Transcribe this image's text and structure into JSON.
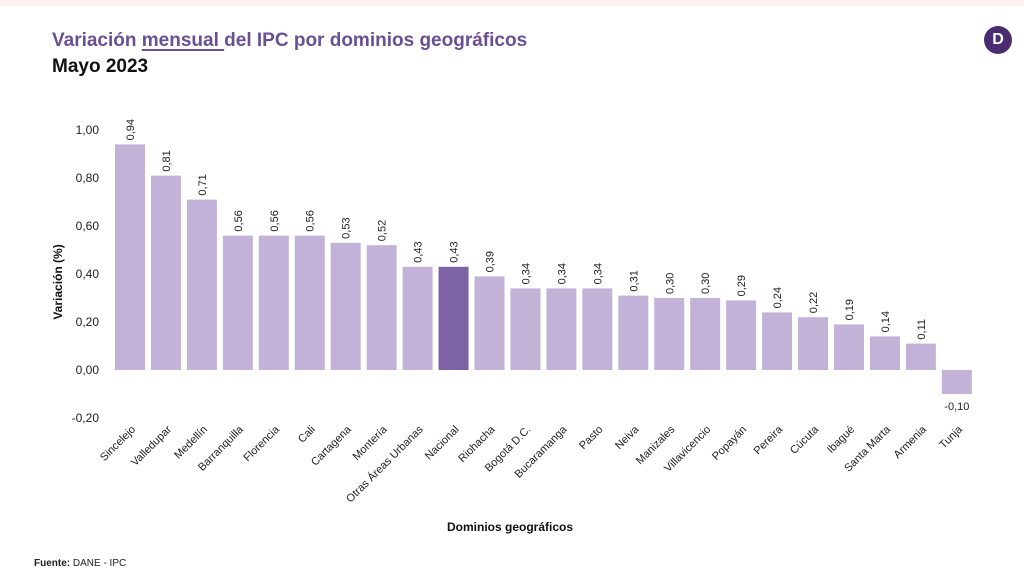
{
  "header": {
    "title_part1": "Variación ",
    "title_underlined": "mensual ",
    "title_part2": "del IPC por dominios geográficos",
    "subtitle": "Mayo 2023",
    "logo_letter": "D"
  },
  "footer": {
    "source_label": "Fuente:",
    "source_value": " DANE - IPC"
  },
  "chart_data": {
    "type": "bar",
    "title": "Variación mensual del IPC por dominios geográficos",
    "subtitle": "Mayo 2023",
    "xlabel": "Dominios geográficos",
    "ylabel": "Variación (%)",
    "ylim": [
      -0.2,
      1.0
    ],
    "yticks": [
      -0.2,
      0.0,
      0.2,
      0.4,
      0.6,
      0.8,
      1.0
    ],
    "ytick_labels": [
      "-0,20",
      "0,00",
      "0,20",
      "0,40",
      "0,60",
      "0,80",
      "1,00"
    ],
    "grid": false,
    "categories": [
      "Sincelejo",
      "Valledupar",
      "Medellín",
      "Barranquilla",
      "Florencia",
      "Cali",
      "Cartagena",
      "Montería",
      "Otras Áreas Urbanas",
      "Nacional",
      "Riohacha",
      "Bogotá D.C.",
      "Bucaramanga",
      "Pasto",
      "Neiva",
      "Manizales",
      "Villavicencio",
      "Popayán",
      "Pereira",
      "Cúcuta",
      "Ibagué",
      "Santa Marta",
      "Armenia",
      "Tunja"
    ],
    "values": [
      0.94,
      0.81,
      0.71,
      0.56,
      0.56,
      0.56,
      0.53,
      0.52,
      0.43,
      0.43,
      0.39,
      0.34,
      0.34,
      0.34,
      0.31,
      0.3,
      0.3,
      0.29,
      0.24,
      0.22,
      0.19,
      0.14,
      0.11,
      -0.1
    ],
    "value_labels": [
      "0,94",
      "0,81",
      "0,71",
      "0,56",
      "0,56",
      "0,56",
      "0,53",
      "0,52",
      "0,43",
      "0,43",
      "0,39",
      "0,34",
      "0,34",
      "0,34",
      "0,31",
      "0,30",
      "0,30",
      "0,29",
      "0,24",
      "0,22",
      "0,19",
      "0,14",
      "0,11",
      "-0,10"
    ],
    "highlight_category": "Nacional",
    "colors": {
      "bar": "#c2b2d8",
      "highlight": "#7e62a6",
      "title": "#6b4f95"
    }
  }
}
